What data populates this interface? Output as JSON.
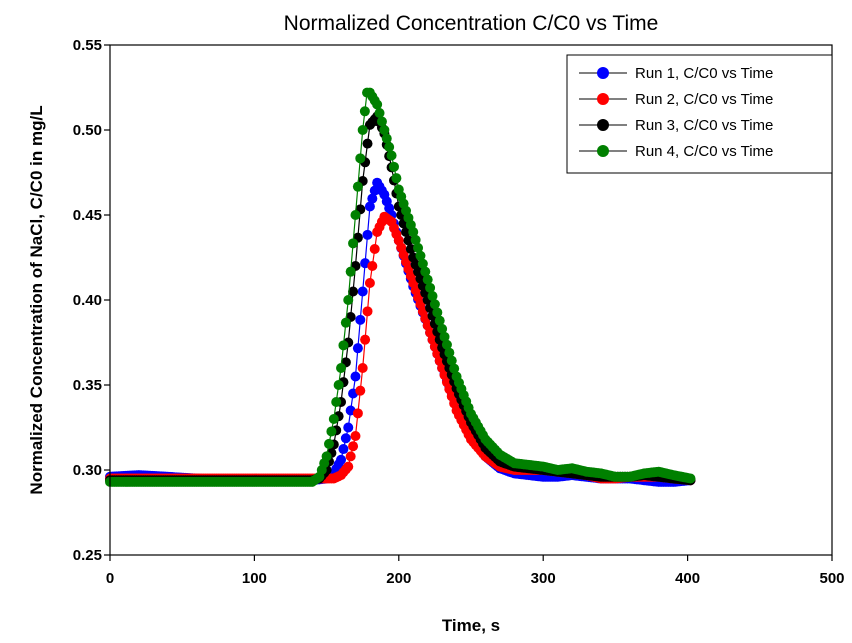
{
  "chart_data": {
    "type": "line",
    "title": "Normalized Concentration C/C0 vs Time",
    "xlabel": "Time, s",
    "ylabel": "Normalized Concentration of NaCl, C/C0 in mg/L",
    "xlim": [
      0,
      500
    ],
    "ylim": [
      0.25,
      0.55
    ],
    "xticks": [
      "0",
      "100",
      "200",
      "300",
      "400",
      "500"
    ],
    "yticks": [
      "0.25",
      "0.30",
      "0.35",
      "0.40",
      "0.45",
      "0.50",
      "0.55"
    ],
    "grid": false,
    "legend_position": "top-right",
    "series": [
      {
        "name": "Run 1, C/C0 vs Time",
        "color": "#0000ff",
        "x": [
          0,
          20,
          40,
          60,
          80,
          100,
          120,
          140,
          150,
          155,
          160,
          165,
          170,
          175,
          180,
          185,
          190,
          195,
          200,
          210,
          220,
          230,
          240,
          250,
          260,
          270,
          280,
          290,
          300,
          310,
          320,
          330,
          340,
          350,
          360,
          370,
          380,
          390,
          402
        ],
        "y": [
          0.296,
          0.297,
          0.296,
          0.295,
          0.294,
          0.294,
          0.294,
          0.294,
          0.295,
          0.298,
          0.306,
          0.325,
          0.355,
          0.405,
          0.455,
          0.469,
          0.462,
          0.45,
          0.435,
          0.408,
          0.385,
          0.36,
          0.338,
          0.32,
          0.308,
          0.301,
          0.298,
          0.297,
          0.296,
          0.296,
          0.297,
          0.296,
          0.295,
          0.295,
          0.295,
          0.294,
          0.293,
          0.293,
          0.294
        ]
      },
      {
        "name": "Run 2, C/C0 vs Time",
        "color": "#ff0000",
        "x": [
          0,
          20,
          40,
          60,
          80,
          100,
          120,
          140,
          150,
          155,
          160,
          165,
          170,
          175,
          180,
          185,
          190,
          195,
          200,
          210,
          220,
          230,
          240,
          250,
          260,
          270,
          280,
          290,
          300,
          310,
          320,
          330,
          340,
          350,
          360,
          370,
          380,
          390,
          402
        ],
        "y": [
          0.295,
          0.295,
          0.295,
          0.295,
          0.295,
          0.295,
          0.295,
          0.295,
          0.295,
          0.295,
          0.297,
          0.302,
          0.32,
          0.36,
          0.41,
          0.44,
          0.449,
          0.446,
          0.435,
          0.41,
          0.385,
          0.36,
          0.335,
          0.318,
          0.308,
          0.302,
          0.3,
          0.3,
          0.3,
          0.299,
          0.298,
          0.297,
          0.295,
          0.295,
          0.296,
          0.296,
          0.296,
          0.295,
          0.294
        ]
      },
      {
        "name": "Run 3, C/C0 vs Time",
        "color": "#000000",
        "x": [
          0,
          20,
          40,
          60,
          80,
          100,
          120,
          140,
          145,
          150,
          155,
          160,
          165,
          170,
          175,
          180,
          185,
          190,
          195,
          200,
          210,
          220,
          230,
          240,
          250,
          260,
          270,
          280,
          290,
          300,
          310,
          320,
          330,
          340,
          350,
          360,
          370,
          380,
          390,
          402
        ],
        "y": [
          0.294,
          0.294,
          0.294,
          0.294,
          0.294,
          0.294,
          0.294,
          0.294,
          0.295,
          0.3,
          0.315,
          0.34,
          0.375,
          0.42,
          0.47,
          0.503,
          0.508,
          0.498,
          0.478,
          0.455,
          0.425,
          0.4,
          0.372,
          0.348,
          0.328,
          0.313,
          0.305,
          0.302,
          0.301,
          0.3,
          0.299,
          0.298,
          0.297,
          0.296,
          0.296,
          0.296,
          0.297,
          0.296,
          0.295,
          0.294
        ]
      },
      {
        "name": "Run 4, C/C0 vs Time",
        "color": "#008000",
        "x": [
          0,
          20,
          40,
          60,
          80,
          100,
          120,
          140,
          145,
          150,
          155,
          160,
          165,
          170,
          175,
          178,
          180,
          185,
          190,
          195,
          200,
          210,
          220,
          230,
          240,
          250,
          260,
          270,
          280,
          290,
          300,
          310,
          320,
          330,
          340,
          350,
          360,
          370,
          380,
          390,
          402
        ],
        "y": [
          0.293,
          0.293,
          0.293,
          0.293,
          0.293,
          0.293,
          0.293,
          0.293,
          0.296,
          0.308,
          0.33,
          0.36,
          0.4,
          0.45,
          0.5,
          0.522,
          0.522,
          0.515,
          0.5,
          0.485,
          0.465,
          0.44,
          0.412,
          0.383,
          0.355,
          0.333,
          0.318,
          0.309,
          0.304,
          0.303,
          0.302,
          0.3,
          0.301,
          0.299,
          0.298,
          0.296,
          0.296,
          0.298,
          0.299,
          0.297,
          0.295
        ]
      }
    ]
  }
}
